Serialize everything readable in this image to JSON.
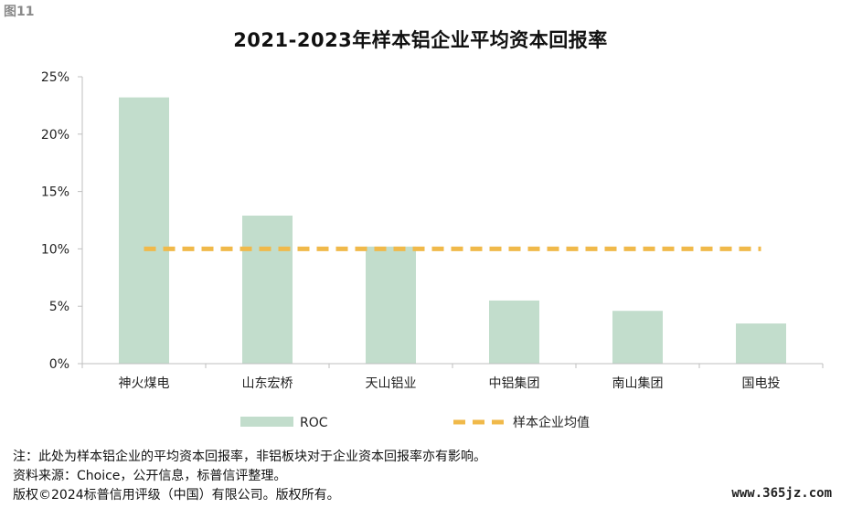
{
  "figure_label": "图11",
  "chart_data": {
    "type": "bar",
    "title": "2021-2023年样本铝企业平均资本回报率",
    "categories": [
      "神火煤电",
      "山东宏桥",
      "天山铝业",
      "中铝集团",
      "南山集团",
      "国电投"
    ],
    "series": [
      {
        "name": "ROC",
        "values": [
          23.2,
          12.9,
          10.2,
          5.5,
          4.6,
          3.5
        ],
        "color": "#c2ddcc"
      },
      {
        "name": "样本企业均值",
        "values": [
          10.0,
          10.0,
          10.0,
          10.0,
          10.0,
          10.0
        ],
        "color": "#f0b94a",
        "style": "dashed-line"
      }
    ],
    "ylim": [
      0,
      25
    ],
    "yticks": [
      0,
      5,
      10,
      15,
      20,
      25
    ],
    "ytick_labels": [
      "0%",
      "5%",
      "10%",
      "15%",
      "20%",
      "25%"
    ],
    "grid": false,
    "legend": "bottom"
  },
  "notes": [
    "注：此处为样本铝企业的平均资本回报率，非铝板块对于企业资本回报率亦有影响。",
    "资料来源：Choice，公开信息，标普信评整理。",
    "版权©2024标普信用评级（中国）有限公司。版权所有。"
  ],
  "watermark": "www.365jz.com"
}
